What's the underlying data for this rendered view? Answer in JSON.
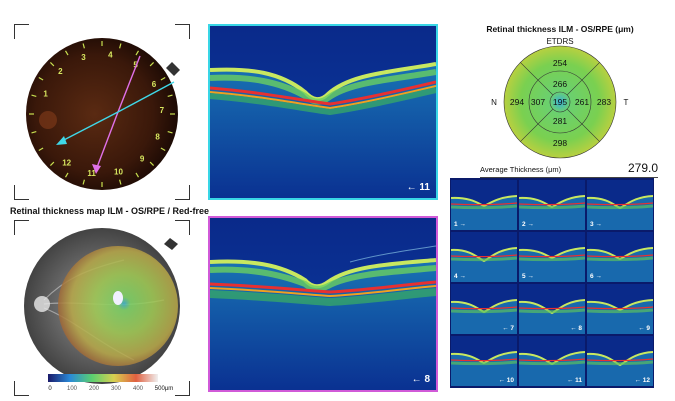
{
  "fundus": {
    "clock_numbers": [
      "1",
      "2",
      "3",
      "4",
      "5",
      "6",
      "7",
      "8",
      "9",
      "10",
      "11",
      "12"
    ]
  },
  "thickness_map": {
    "title": "Retinal thickness map ILM - OS/RPE / Red-free",
    "scale_labels": [
      "0",
      "100",
      "200",
      "300",
      "400",
      "500μm"
    ]
  },
  "oct_top": {
    "label": "11"
  },
  "oct_bottom": {
    "label": "8"
  },
  "etdrs": {
    "title": "Retinal thickness ILM - OS/RPE (μm)",
    "subtitle": "ETDRS",
    "nasal_label": "N",
    "temporal_label": "T",
    "values": {
      "outer_superior": "254",
      "inner_superior": "266",
      "outer_nasal": "294",
      "inner_nasal": "307",
      "center": "195",
      "inner_temporal": "261",
      "outer_temporal": "283",
      "inner_inferior": "281",
      "outer_inferior": "298"
    }
  },
  "average": {
    "label": "Average Thickness   (μm)",
    "value": "279.0"
  },
  "scan_grid": {
    "labels": [
      "1",
      "2",
      "3",
      "4",
      "5",
      "6",
      "7",
      "8",
      "9",
      "10",
      "11",
      "12"
    ]
  },
  "colors": {
    "top_scan_border": "#39d6e6",
    "bottom_scan_border": "#d15ad8",
    "arrow_cyan": "#3fd8e8",
    "arrow_magenta": "#e070e8",
    "clock_text": "#d8e860"
  }
}
